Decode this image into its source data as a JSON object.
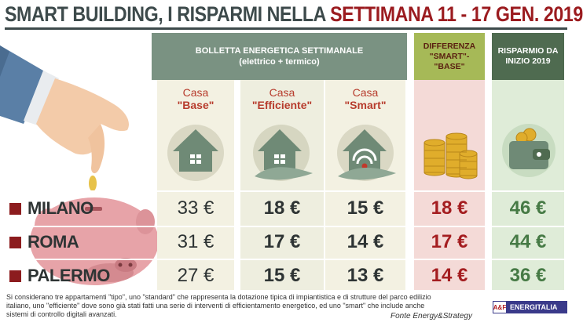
{
  "title": {
    "part1": "SMART BUILDING, I RISPARMI NELLA ",
    "part2": "SETTIMANA 11 - 17 GEN. 2019"
  },
  "header": {
    "main": "BOLLETTA ENERGETICA SETTIMANALE",
    "main_sub": "(elettrico + termico)",
    "diff": "DIFFERENZA \"SMART\"- \"BASE\"",
    "ytd": "RISPARMIO DA INIZIO 2019"
  },
  "columns": [
    {
      "line1": "Casa",
      "line2": "\"Base\"",
      "icon": "house-icon"
    },
    {
      "line1": "Casa",
      "line2": "\"Efficiente\"",
      "icon": "efficient-house-icon"
    },
    {
      "line1": "Casa",
      "line2": "\"Smart\"",
      "icon": "smart-house-icon"
    }
  ],
  "rows": [
    {
      "city": "MILANO",
      "base": "33 €",
      "eff": "18 €",
      "smart": "15 €",
      "diff": "18 €",
      "ytd": "46 €"
    },
    {
      "city": "ROMA",
      "base": "31 €",
      "eff": "17 €",
      "smart": "14 €",
      "diff": "17 €",
      "ytd": "44 €"
    },
    {
      "city": "PALERMO",
      "base": "27 €",
      "eff": "15 €",
      "smart": "13 €",
      "diff": "14 €",
      "ytd": "36 €"
    }
  ],
  "footnote": "Si considerano tre appartamenti \"tipo\", uno \"standard\" che rappresenta la dotazione tipica di impiantistica e di strutture del parco edilizio italiano, uno \"efficiente\" dove sono già stati fatti una serie di interventi di efficientamento energetico, ed uno \"smart\" che include anche sistemi di controllo digitali avanzati.",
  "source": "Fonte Energy&Strategy",
  "logo": {
    "mark": "A&F",
    "name": "ENERGITALIA"
  },
  "colors": {
    "title": "#3d4a4b",
    "accent": "#9b1b1f",
    "diff_value": "#a41d20",
    "ytd_value": "#467a45"
  }
}
